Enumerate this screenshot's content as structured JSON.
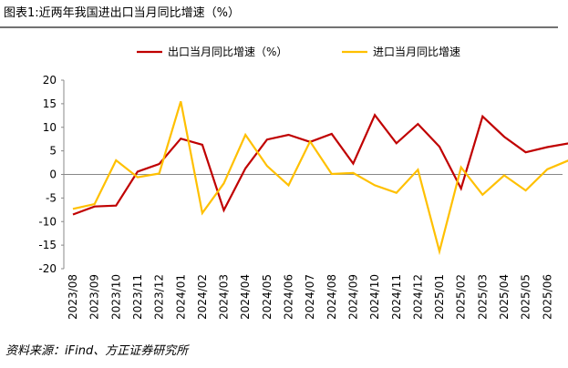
{
  "header": {
    "title": "图表1:近两年我国进出口当月同比增速（%）"
  },
  "chart_data": {
    "type": "line",
    "categories": [
      "2023/08",
      "2023/09",
      "2023/10",
      "2023/11",
      "2023/12",
      "2024/01",
      "2024/02",
      "2024/03",
      "2024/04",
      "2024/05",
      "2024/06",
      "2024/07",
      "2024/08",
      "2024/09",
      "2024/10",
      "2024/11",
      "2024/12",
      "2025/01",
      "2025/02",
      "2025/03",
      "2025/04",
      "2025/05",
      "2025/06",
      null
    ],
    "series": [
      {
        "name": "出口当月同比增速（%）",
        "color": "#c00000",
        "values": [
          -8.5,
          -6.8,
          -6.6,
          0.6,
          2.2,
          7.6,
          6.3,
          -7.6,
          1.3,
          7.4,
          8.4,
          6.9,
          8.6,
          2.3,
          12.6,
          6.6,
          10.7,
          5.9,
          -3.0,
          12.3,
          8.0,
          4.7,
          5.8,
          6.6
        ]
      },
      {
        "name": "进口当月同比增速",
        "color": "#ffc000",
        "values": [
          -7.3,
          -6.3,
          3.0,
          -0.6,
          0.2,
          15.5,
          -8.2,
          -1.9,
          8.4,
          1.8,
          -2.3,
          7.0,
          0.1,
          0.3,
          -2.3,
          -3.9,
          1.0,
          -16.3,
          1.5,
          -4.3,
          -0.2,
          -3.4,
          1.1,
          3.0
        ]
      }
    ],
    "ylim": [
      -20,
      20
    ],
    "yticks": [
      -20,
      -15,
      -10,
      -5,
      0,
      5,
      10,
      15,
      20
    ],
    "source": "资料来源：iFind、方正证券研究所"
  }
}
